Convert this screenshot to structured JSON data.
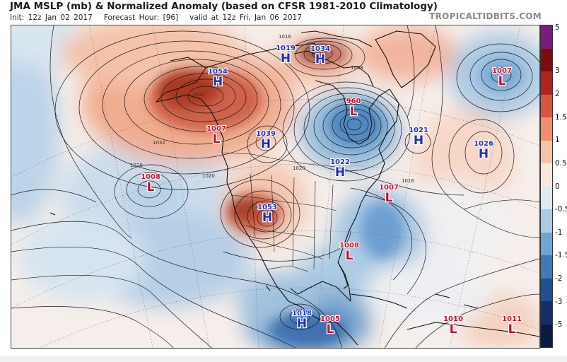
{
  "header": {
    "title": "JMA MSLP (mb) & Normalized Anomaly (based on CFSR 1981-2010 Climatology)",
    "init": "Init: 12z Jan 02 2017",
    "forecast_hour": "Forecast Hour: [96]",
    "valid": "valid at 12z Fri, Jan 06 2017",
    "brand": "TROPICALTIDBITS.COM"
  },
  "colors": {
    "high_label": "#1f2fb8",
    "low_label": "#c8102e",
    "contour": "#1a1a1a",
    "boundary": "#111111"
  },
  "colorbar": {
    "ticks": [
      "5",
      "3",
      "2",
      "1.5",
      "1",
      "0.5",
      "0",
      "-0.5",
      "-1",
      "-1.5",
      "-2",
      "-3",
      "-5"
    ],
    "colors": [
      "#7a1c7a",
      "#7d0d0d",
      "#b1241e",
      "#d9553c",
      "#ef8f6e",
      "#f6c3a8",
      "#fbe7dc",
      "#dde9f3",
      "#a9cbe4",
      "#6ea5d1",
      "#3f7ab8",
      "#1f4f95",
      "#152f6a",
      "#0c1b45"
    ]
  },
  "systems": [
    {
      "type": "H",
      "value": "1054",
      "name": "alaska-high"
    },
    {
      "type": "H",
      "value": "1019",
      "name": "arctic-high-west"
    },
    {
      "type": "H",
      "value": "1034",
      "name": "arctic-high-east"
    },
    {
      "type": "L",
      "value": "960",
      "name": "hudson-bay-low"
    },
    {
      "type": "L",
      "value": "1007",
      "name": "north-atlantic-low"
    },
    {
      "type": "L",
      "value": "1007",
      "name": "pacific-coast-low"
    },
    {
      "type": "H",
      "value": "1039",
      "name": "canada-high"
    },
    {
      "type": "H",
      "value": "1021",
      "name": "atlantic-high-west"
    },
    {
      "type": "H",
      "value": "1026",
      "name": "atlantic-high-east"
    },
    {
      "type": "L",
      "value": "1008",
      "name": "pacific-low"
    },
    {
      "type": "H",
      "value": "1022",
      "name": "great-lakes-high"
    },
    {
      "type": "L",
      "value": "1007",
      "name": "western-atlantic-low"
    },
    {
      "type": "H",
      "value": "1053",
      "name": "rockies-high"
    },
    {
      "type": "L",
      "value": "1008",
      "name": "gulf-low"
    },
    {
      "type": "H",
      "value": "1018",
      "name": "mexico-high"
    },
    {
      "type": "L",
      "value": "1005",
      "name": "central-america-low"
    },
    {
      "type": "L",
      "value": "1010",
      "name": "caribbean-low-west"
    },
    {
      "type": "L",
      "value": "1011",
      "name": "caribbean-low-east"
    }
  ],
  "isobar_labels": [
    "1016",
    "1032",
    "1020",
    "1020",
    "1020",
    "1016",
    "1008",
    "1032"
  ]
}
